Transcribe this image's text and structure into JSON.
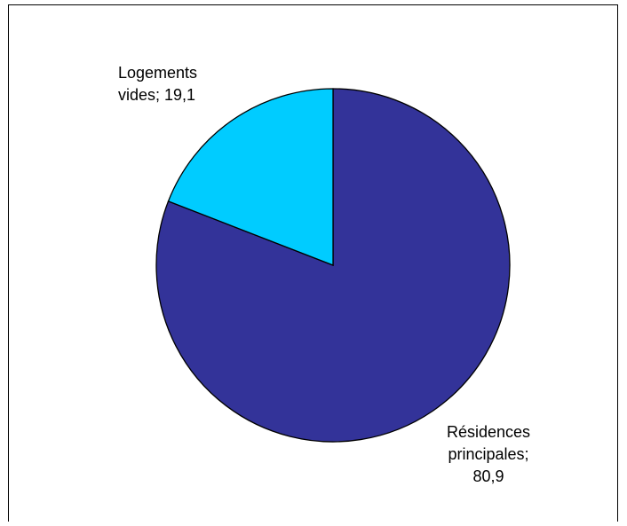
{
  "chart_data": {
    "type": "pie",
    "title": "",
    "slices": [
      {
        "label": "Résidences principales; 80,9",
        "name": "Résidences principales",
        "value": 80.9,
        "color": "#333399"
      },
      {
        "label": "Logements vides; 19,1",
        "name": "Logements vides",
        "value": 19.1,
        "color": "#00CCFF"
      }
    ],
    "start": "12 o'clock",
    "direction": "clockwise",
    "legend": "none",
    "data_labels": "category name and value"
  }
}
